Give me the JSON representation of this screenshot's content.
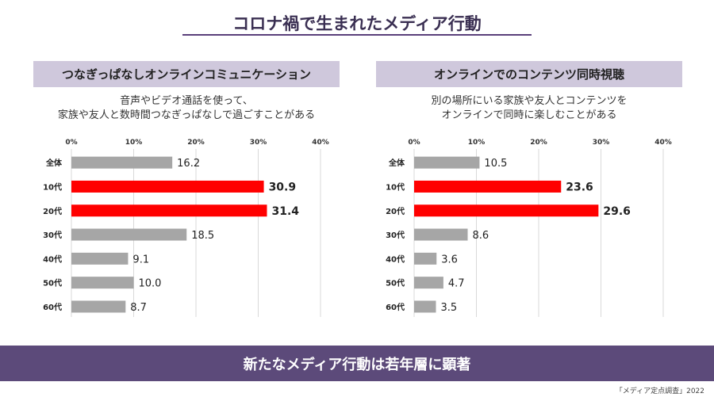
{
  "title": "コロナ禍で生まれたメディア行動",
  "footer": "新たなメディア行動は若年層に顕著",
  "source": "「メディア定点調査」2022",
  "colors": {
    "highlight": "#ff0000",
    "normal": "#a6a6a6",
    "panel_header": "#cfc8dc",
    "footer_bg": "#5c4a7a"
  },
  "panels": [
    {
      "header": "つなぎっぱなしオンラインコミュニケーション",
      "desc_line1": "音声やビデオ通話を使って、",
      "desc_line2": "家族や友人と数時間つなぎっぱなしで過ごすことがある"
    },
    {
      "header": "オンラインでのコンテンツ同時視聴",
      "desc_line1": "別の場所にいる家族や友人とコンテンツを",
      "desc_line2": "オンラインで同時に楽しむことがある"
    }
  ],
  "chart_data": [
    {
      "type": "bar",
      "orientation": "horizontal",
      "categories": [
        "全体",
        "10代",
        "20代",
        "30代",
        "40代",
        "50代",
        "60代"
      ],
      "values": [
        16.2,
        30.9,
        31.4,
        18.5,
        9.1,
        10.0,
        8.7
      ],
      "value_labels": [
        "16.2",
        "30.9",
        "31.4",
        "18.5",
        "9.1",
        "10.0",
        "8.7"
      ],
      "highlight": [
        false,
        true,
        true,
        false,
        false,
        false,
        false
      ],
      "ticks": [
        "0%",
        "10%",
        "20%",
        "30%",
        "40%"
      ],
      "xlim": [
        0,
        40
      ]
    },
    {
      "type": "bar",
      "orientation": "horizontal",
      "categories": [
        "全体",
        "10代",
        "20代",
        "30代",
        "40代",
        "50代",
        "60代"
      ],
      "values": [
        10.5,
        23.6,
        29.6,
        8.6,
        3.6,
        4.7,
        3.5
      ],
      "value_labels": [
        "10.5",
        "23.6",
        "29.6",
        "8.6",
        "3.6",
        "4.7",
        "3.5"
      ],
      "highlight": [
        false,
        true,
        true,
        false,
        false,
        false,
        false
      ],
      "ticks": [
        "0%",
        "10%",
        "20%",
        "30%",
        "40%"
      ],
      "xlim": [
        0,
        40
      ]
    }
  ]
}
